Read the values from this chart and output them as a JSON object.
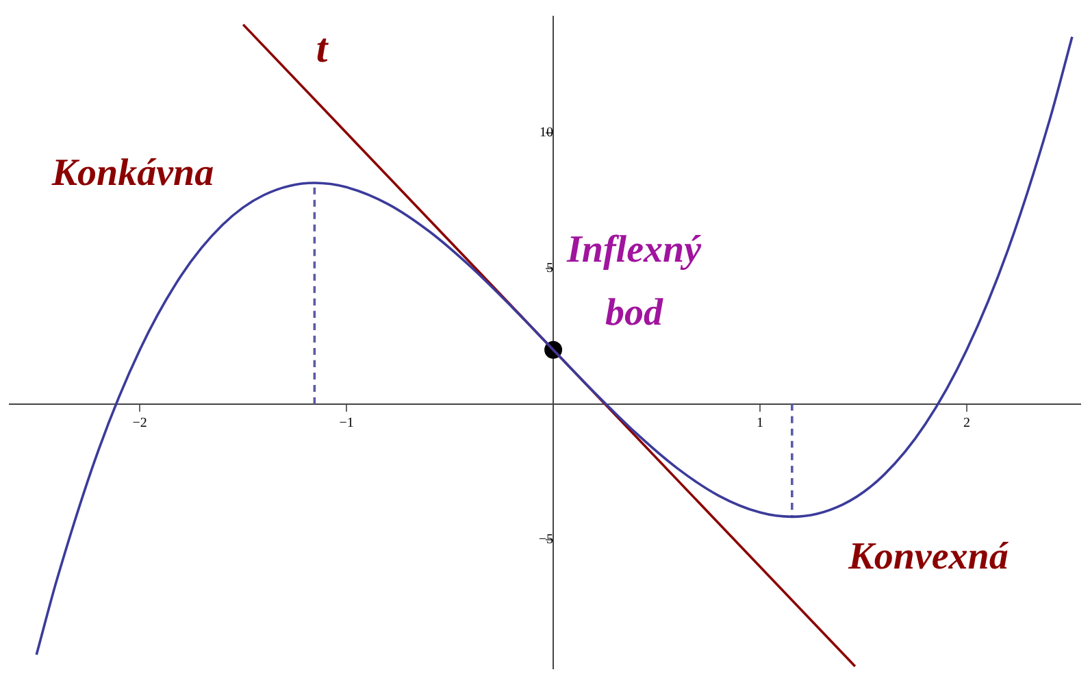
{
  "chart_data": {
    "type": "line",
    "xlim": [
      -2.63,
      2.55
    ],
    "ylim": [
      -9.76,
      14.3
    ],
    "xticks": [
      {
        "value": -2,
        "label": "−2"
      },
      {
        "value": -1,
        "label": "−1"
      },
      1,
      2
    ],
    "yticks": [
      {
        "value": -5,
        "label": "−5"
      },
      5,
      10
    ],
    "grid": false,
    "legend": false,
    "marker": "none",
    "series": [
      {
        "color": "#3b3b9b",
        "line_style": "solid",
        "x": [
          -2.5,
          -2.4,
          -2.2,
          -2.0,
          -1.8,
          -1.6,
          -1.4,
          -1.155,
          -1.0,
          -0.8,
          -0.6,
          -0.4,
          -0.2,
          0,
          0.2,
          0.4,
          0.6,
          0.8,
          1.0,
          1.155,
          1.4,
          1.6,
          1.8,
          2.0,
          2.2,
          2.4,
          2.51
        ],
        "values": [
          -9.25,
          -6.45,
          -1.7,
          2,
          4.74,
          6.61,
          7.71,
          8.16,
          8,
          7.38,
          6.37,
          5.07,
          3.58,
          2,
          0.42,
          -1.07,
          -2.37,
          -3.38,
          -4,
          -4.16,
          -3.71,
          -2.61,
          -0.74,
          2,
          5.7,
          10.45,
          13.55
        ]
      },
      {
        "color": "#8b0000",
        "line_style": "solid",
        "x": [
          -1.5,
          1.46
        ],
        "values": [
          14,
          -9.68
        ]
      },
      {
        "type": "line",
        "color": "#5a5aa8",
        "line_style": "dashed",
        "x": [
          -1.155,
          -1.155
        ],
        "values": [
          0,
          8.16
        ]
      },
      {
        "type": "line",
        "color": "#5a5aa8",
        "line_style": "dashed",
        "x": [
          1.155,
          1.155
        ],
        "values": [
          0,
          -4.16
        ]
      },
      {
        "type": "scatter",
        "color": "#000000",
        "marker": "circle",
        "x": [
          0
        ],
        "values": [
          2
        ]
      }
    ],
    "annotations": [
      "t",
      "Konkávna",
      "Inflexný bod",
      "Konvexná"
    ]
  }
}
